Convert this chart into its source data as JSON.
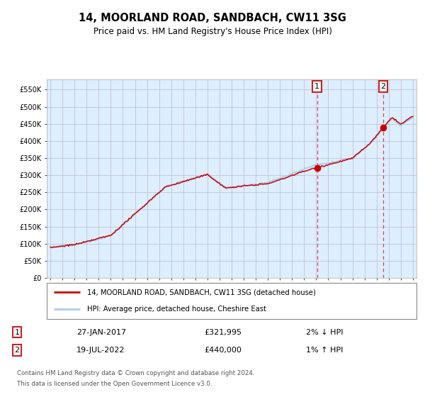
{
  "title": "14, MOORLAND ROAD, SANDBACH, CW11 3SG",
  "subtitle": "Price paid vs. HM Land Registry's House Price Index (HPI)",
  "ylabel_ticks": [
    "£0",
    "£50K",
    "£100K",
    "£150K",
    "£200K",
    "£250K",
    "£300K",
    "£350K",
    "£400K",
    "£450K",
    "£500K",
    "£550K"
  ],
  "ytick_values": [
    0,
    50000,
    100000,
    150000,
    200000,
    250000,
    300000,
    350000,
    400000,
    450000,
    500000,
    550000
  ],
  "ylim": [
    0,
    580000
  ],
  "xlim_start": 1994.7,
  "xlim_end": 2025.3,
  "hpi_color": "#aaccee",
  "price_color": "#cc0000",
  "vline1_color": "#dd4444",
  "vline2_color": "#dd4444",
  "marker1_x": 2017.07,
  "marker1_y": 321995,
  "marker1_label": "1",
  "marker1_date": "27-JAN-2017",
  "marker1_price": "£321,995",
  "marker1_hpi": "2% ↓ HPI",
  "marker2_x": 2022.55,
  "marker2_y": 440000,
  "marker2_label": "2",
  "marker2_date": "19-JUL-2022",
  "marker2_price": "£440,000",
  "marker2_hpi": "1% ↑ HPI",
  "legend_line1": "14, MOORLAND ROAD, SANDBACH, CW11 3SG (detached house)",
  "legend_line2": "HPI: Average price, detached house, Cheshire East",
  "footnote_line1": "Contains HM Land Registry data © Crown copyright and database right 2024.",
  "footnote_line2": "This data is licensed under the Open Government Licence v3.0.",
  "background_color": "#ffffff",
  "plot_bg_color": "#ddeeff",
  "grid_color": "#bbbbcc",
  "box1_color": "#cc2222",
  "box2_color": "#cc2222"
}
